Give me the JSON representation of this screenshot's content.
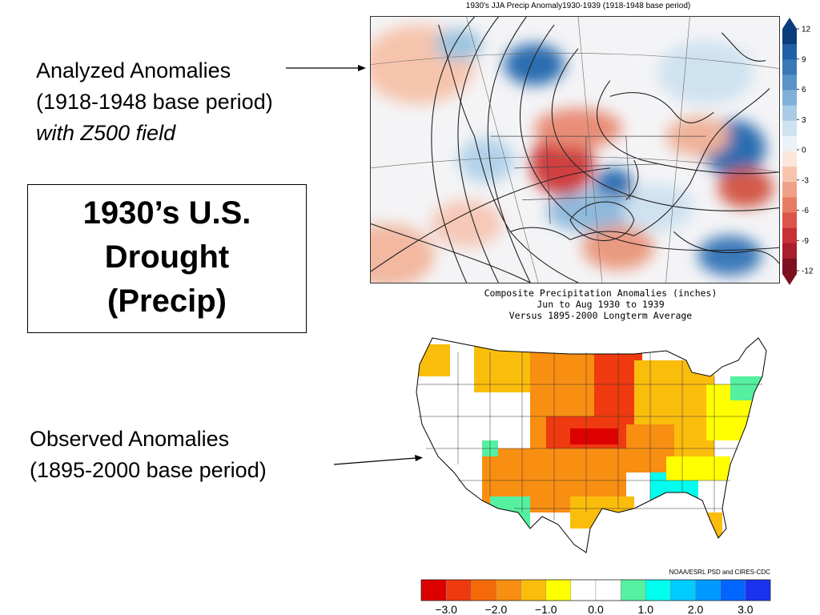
{
  "analyzed": {
    "line1": "Analyzed Anomalies",
    "line2": "(1918-1948 base period)",
    "line3": "with Z500 field"
  },
  "main_title": {
    "line1": "1930’s U.S.",
    "line2": "Drought",
    "line3": "(Precip)"
  },
  "observed": {
    "line1": "Observed Anomalies",
    "line2": "(1895-2000 base period)"
  },
  "map1": {
    "title": "1930's JJA Precip Anomaly1930-1939 (1918-1948 base period)",
    "colorbar_ticks": [
      "12",
      "9",
      "6",
      "3",
      "0",
      "-3",
      "-6",
      "-9",
      "-12"
    ],
    "colors": {
      "wet": "#1f5fa6",
      "dry": "#c0303a",
      "neutral": "#f7f7f7"
    }
  },
  "map2": {
    "caption_line1": "Composite Precipitation Anomalies (inches)",
    "caption_line2": "Jun to Aug 1930 to 1939",
    "caption_line3": "Versus 1895-2000 Longterm Average",
    "credit": "NOAA/ESRL PSD and CIRES-CDC",
    "colorbar_ticks": [
      "-3.0",
      "-2.0",
      "-1.0",
      "0.0",
      "1.0",
      "2.0",
      "3.0"
    ],
    "colorbar_colors": [
      "#dd0000",
      "#ef3a10",
      "#f56a08",
      "#f88e12",
      "#fbbd0c",
      "#ffff00",
      "#ffffff",
      "#ffffff",
      "#55f0a0",
      "#00ffee",
      "#00ccff",
      "#0099ff",
      "#0066ff",
      "#1a33ee"
    ]
  }
}
